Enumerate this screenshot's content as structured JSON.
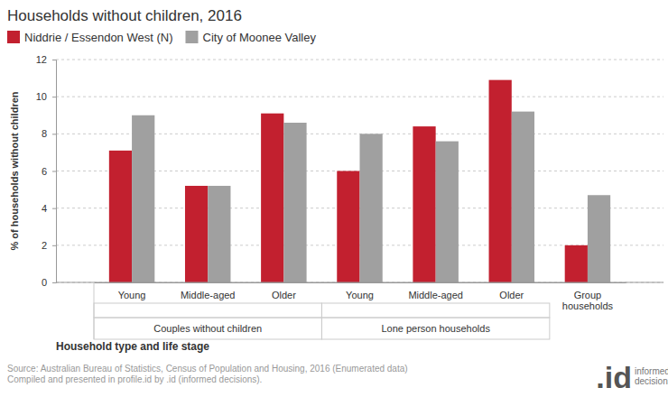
{
  "chart_data": {
    "type": "bar",
    "title": "Households without children, 2016",
    "x_label": "Household type and life stage",
    "y_label": "% of households without children",
    "categories": [
      "Young",
      "Middle-aged",
      "Older",
      "Young",
      "Middle-aged",
      "Older",
      "Group households"
    ],
    "groups": [
      "Couples without children",
      "Couples without children",
      "Couples without children",
      "Lone person households",
      "Lone person households",
      "Lone person households",
      null
    ],
    "series": [
      {
        "name": "Niddrie / Essendon West (N)",
        "color": "#c2202f",
        "values": [
          7.1,
          5.2,
          9.1,
          6.0,
          8.4,
          10.9,
          2.0
        ]
      },
      {
        "name": "City of Moonee Valley",
        "color": "#a0a0a0",
        "values": [
          9.0,
          5.2,
          8.6,
          8.0,
          7.6,
          9.2,
          4.7
        ]
      }
    ],
    "ylim": [
      0,
      12
    ],
    "yticks": [
      0,
      2,
      4,
      6,
      8,
      10,
      12
    ],
    "grid": true,
    "legend": "top-left",
    "source": [
      "Source: Australian Bureau of Statistics, Census of Population and Housing, 2016 (Enumerated data)",
      "Compiled and presented in profile.id by .id (informed decisions)."
    ],
    "logo": [
      ".id",
      "informed",
      "decisions"
    ]
  }
}
